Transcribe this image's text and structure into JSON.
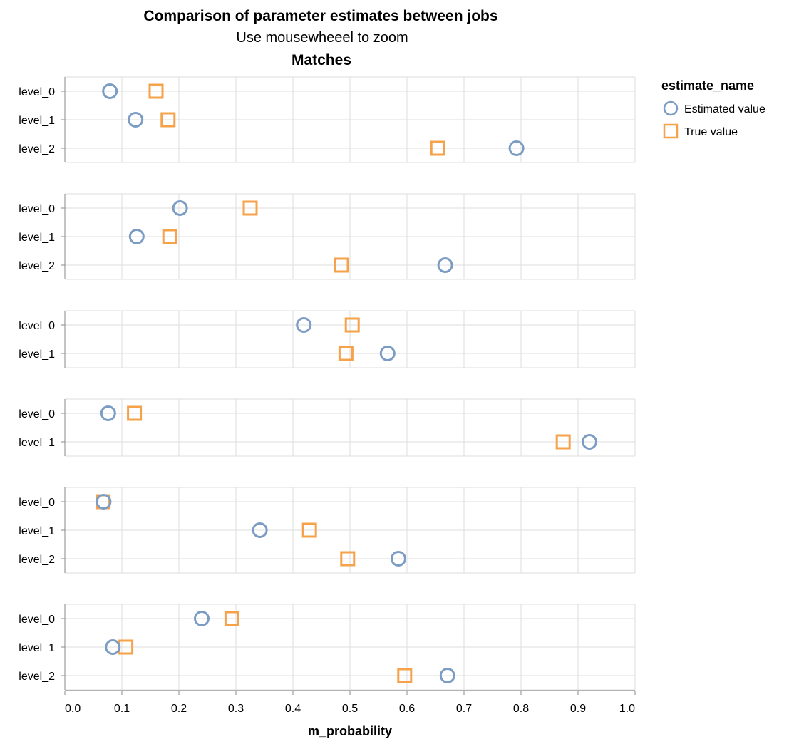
{
  "chart_data": {
    "type": "scatter",
    "title": "Comparison of parameter estimates between jobs",
    "subtitle": "Use mousewheeel to zoom",
    "facet_title": "Matches",
    "xlabel": "m_probability",
    "xlim": [
      0,
      1
    ],
    "x_ticks": [
      "0.0",
      "0.1",
      "0.2",
      "0.3",
      "0.4",
      "0.5",
      "0.6",
      "0.7",
      "0.8",
      "0.9",
      "1.0"
    ],
    "grid": true,
    "legend": {
      "title": "estimate_name",
      "placement": "top-right",
      "entries": [
        {
          "label": "Estimated value",
          "shape": "circle",
          "color": "#7b9cc4"
        },
        {
          "label": "True value",
          "shape": "square",
          "color": "#f5a24b"
        }
      ]
    },
    "panels": [
      {
        "levels": [
          "level_0",
          "level_1",
          "level_2"
        ],
        "estimated": [
          0.079,
          0.124,
          0.792
        ],
        "true": [
          0.16,
          0.181,
          0.654
        ]
      },
      {
        "levels": [
          "level_0",
          "level_1",
          "level_2"
        ],
        "estimated": [
          0.202,
          0.126,
          0.667
        ],
        "true": [
          0.325,
          0.184,
          0.485
        ]
      },
      {
        "levels": [
          "level_0",
          "level_1"
        ],
        "estimated": [
          0.419,
          0.566
        ],
        "true": [
          0.504,
          0.493
        ]
      },
      {
        "levels": [
          "level_0",
          "level_1"
        ],
        "estimated": [
          0.076,
          0.92
        ],
        "true": [
          0.122,
          0.874
        ]
      },
      {
        "levels": [
          "level_0",
          "level_1",
          "level_2"
        ],
        "estimated": [
          0.068,
          0.342,
          0.585
        ],
        "true": [
          0.067,
          0.429,
          0.496
        ]
      },
      {
        "levels": [
          "level_0",
          "level_1",
          "level_2"
        ],
        "estimated": [
          0.24,
          0.084,
          0.671
        ],
        "true": [
          0.293,
          0.107,
          0.596
        ]
      }
    ]
  }
}
